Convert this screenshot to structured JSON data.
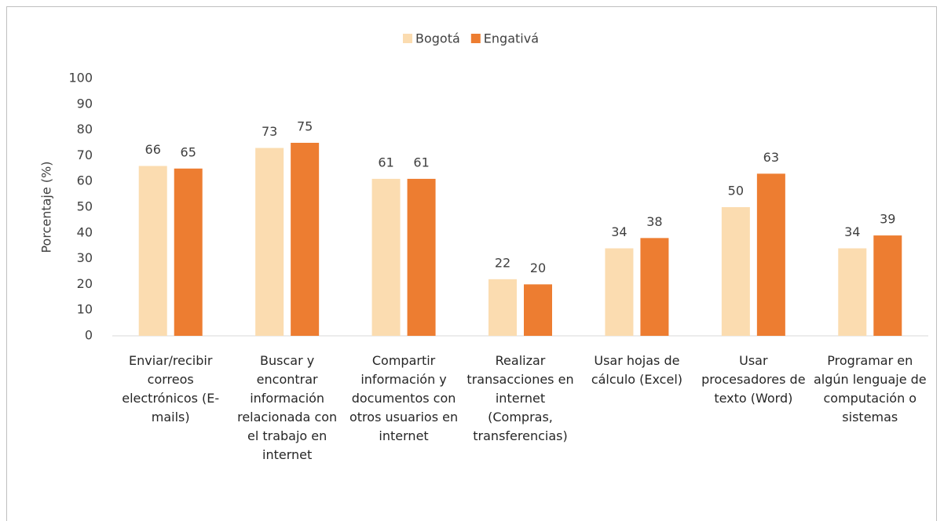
{
  "chart_data": {
    "type": "bar",
    "y_label": "Porcentaje (%)",
    "categories": [
      "Enviar/recibir correos electrónicos (E-mails)",
      "Buscar y encontrar información relacionada con el trabajo en internet",
      "Compartir información y documentos con otros usuarios en internet",
      "Realizar transacciones en internet (Compras, transferencias)",
      "Usar hojas de cálculo (Excel)",
      "Usar procesadores de texto (Word)",
      "Programar en algún lenguaje de computación o sistemas"
    ],
    "series": [
      {
        "name": "Bogotá",
        "color": "#fbdcb0",
        "values": [
          66,
          73,
          61,
          22,
          34,
          50,
          34
        ]
      },
      {
        "name": "Engativá",
        "color": "#ed7d31",
        "values": [
          65,
          75,
          61,
          20,
          38,
          63,
          39
        ]
      }
    ],
    "ylim": [
      0,
      100
    ],
    "yticks": [
      0,
      10,
      20,
      30,
      40,
      50,
      60,
      70,
      80,
      90,
      100
    ],
    "grid": false,
    "legend": "top"
  }
}
